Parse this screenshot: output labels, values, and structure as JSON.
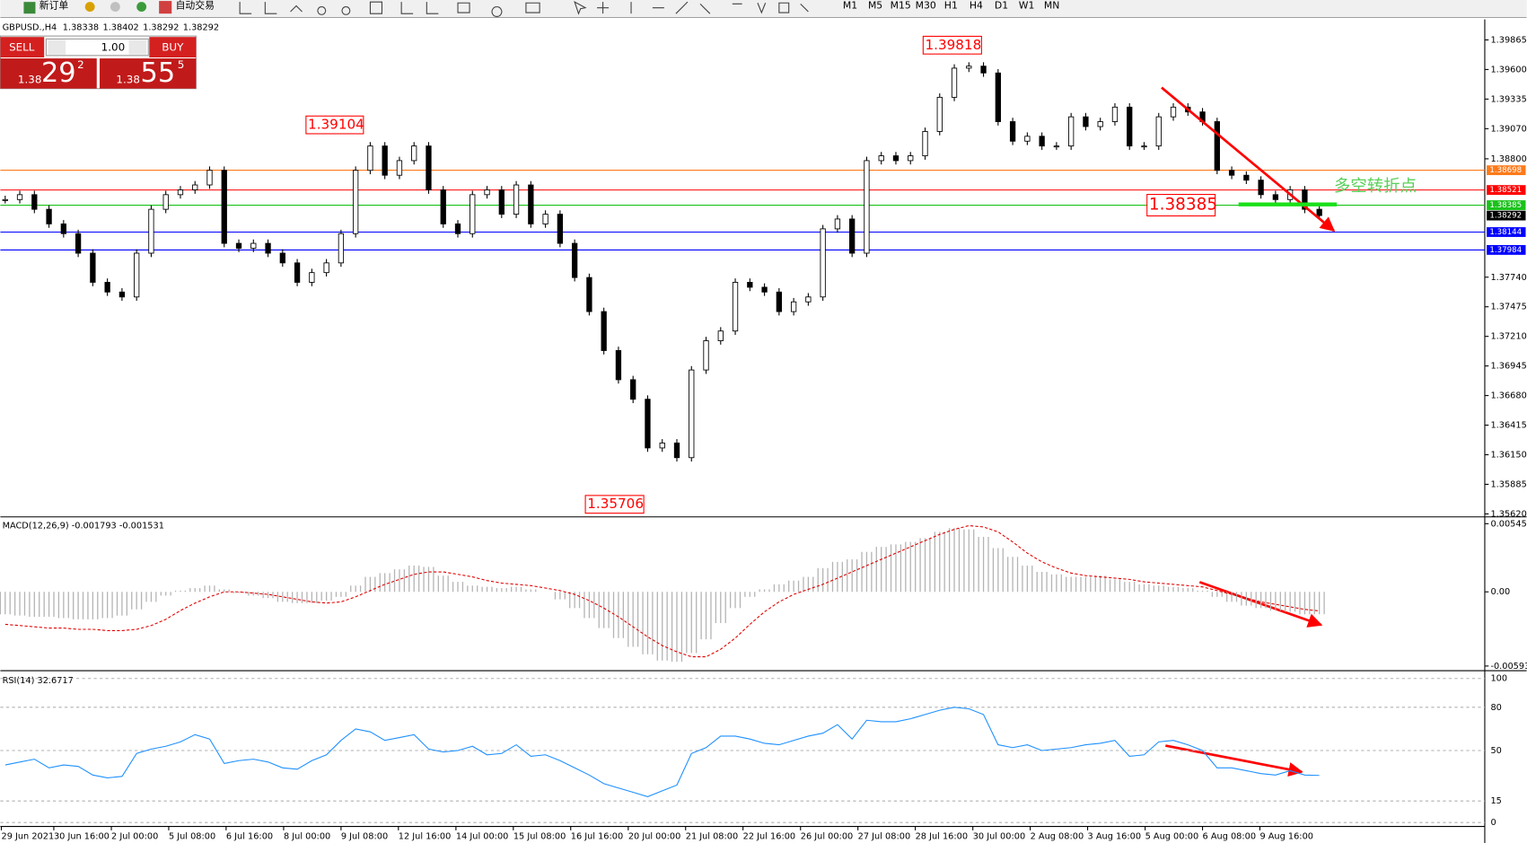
{
  "toolbar": {
    "new_order": "新订单",
    "auto_trading": "自动交易",
    "timeframes": [
      "M1",
      "M5",
      "M15",
      "M30",
      "H1",
      "H4",
      "D1",
      "W1",
      "MN"
    ]
  },
  "order_panel": {
    "sell": "SELL",
    "buy": "BUY",
    "lots": "1.00",
    "bid": {
      "big": "1.38",
      "pips": "29",
      "point": "2"
    },
    "ask": {
      "big": "1.38",
      "pips": "55",
      "point": "5"
    }
  },
  "header": {
    "symbol": "GBPUSD.,H4",
    "ohlc": [
      1.38338,
      1.38402,
      1.38292,
      1.38292
    ]
  },
  "price_chart": {
    "type": "candlestick",
    "closes": [
      1.38435,
      1.38479,
      1.38348,
      1.38217,
      1.3813,
      1.37955,
      1.37694,
      1.37607,
      1.37563,
      1.37955,
      1.38348,
      1.38479,
      1.38522,
      1.38566,
      1.38697,
      1.38043,
      1.37999,
      1.38043,
      1.37955,
      1.37868,
      1.37694,
      1.37781,
      1.37868,
      1.3813,
      1.38697,
      1.38915,
      1.38653,
      1.38784,
      1.38915,
      1.38522,
      1.38217,
      1.3813,
      1.38479,
      1.38522,
      1.38304,
      1.38566,
      1.38217,
      1.38304,
      1.38043,
      1.37737,
      1.37432,
      1.37083,
      1.36822,
      1.36647,
      1.36211,
      1.36255,
      1.36124,
      1.36909,
      1.37171,
      1.37258,
      1.37694,
      1.3765,
      1.37607,
      1.37432,
      1.37519,
      1.37563,
      1.38173,
      1.38261,
      1.37955,
      1.38784,
      1.38827,
      1.38784,
      1.38827,
      1.39045,
      1.39351,
      1.39612,
      1.3963,
      1.39569,
      1.39133,
      1.38958,
      1.39002,
      1.38915,
      1.38915,
      1.39176,
      1.39089,
      1.39133,
      1.39263,
      1.38915,
      1.38915,
      1.39176,
      1.39263,
      1.3922,
      1.39133,
      1.38697,
      1.38653,
      1.38609,
      1.38479,
      1.38435,
      1.38522,
      1.38348,
      1.38292
    ],
    "up_color": "#ffffff",
    "down_color": "#000000",
    "xlim": [
      -0.33,
      101.33
    ],
    "xticks": [
      {
        "value": -0.33,
        "label": "29 Jun 2021"
      },
      {
        "value": 3.33,
        "label": "30 Jun 16:00"
      },
      {
        "value": 7.27,
        "label": "2 Jul 00:00"
      },
      {
        "value": 11.2,
        "label": "5 Jul 08:00"
      },
      {
        "value": 15.13,
        "label": "6 Jul 16:00"
      },
      {
        "value": 19.07,
        "label": "8 Jul 00:00"
      },
      {
        "value": 23,
        "label": "9 Jul 08:00"
      },
      {
        "value": 26.93,
        "label": "12 Jul 16:00"
      },
      {
        "value": 30.87,
        "label": "14 Jul 00:00"
      },
      {
        "value": 34.8,
        "label": "15 Jul 08:00"
      },
      {
        "value": 38.73,
        "label": "16 Jul 16:00"
      },
      {
        "value": 42.67,
        "label": "20 Jul 00:00"
      },
      {
        "value": 46.6,
        "label": "21 Jul 08:00"
      },
      {
        "value": 50.53,
        "label": "22 Jul 16:00"
      },
      {
        "value": 54.47,
        "label": "26 Jul 00:00"
      },
      {
        "value": 58.4,
        "label": "27 Jul 08:00"
      },
      {
        "value": 62.33,
        "label": "28 Jul 16:00"
      },
      {
        "value": 66.27,
        "label": "30 Jul 00:00"
      },
      {
        "value": 70.2,
        "label": "2 Aug 08:00"
      },
      {
        "value": 74.13,
        "label": "3 Aug 16:00"
      },
      {
        "value": 78.07,
        "label": "5 Aug 00:00"
      },
      {
        "value": 82,
        "label": "6 Aug 08:00"
      },
      {
        "value": 85.93,
        "label": "9 Aug 16:00"
      }
    ],
    "ylim": [
      1.35602,
      1.40048
    ],
    "yticks": [
      1.39865,
      {
        "value": 1.396,
        "label": "1.39600"
      },
      1.39335,
      {
        "value": 1.3907,
        "label": "1.39070"
      },
      {
        "value": 1.388,
        "label": "1.38800"
      },
      {
        "value": 1.3774,
        "label": "1.37740"
      },
      1.37475,
      {
        "value": 1.3721,
        "label": "1.37210"
      },
      1.36945,
      {
        "value": 1.3668,
        "label": "1.36680"
      },
      1.36415,
      {
        "value": 1.3615,
        "label": "1.36150"
      },
      1.35885,
      {
        "value": 1.3562,
        "label": "1.35620"
      }
    ],
    "levels": [
      {
        "value": 1.38698,
        "color": "#ff7a1a",
        "line": true
      },
      {
        "value": 1.38521,
        "color": "#ff0000",
        "line": true
      },
      {
        "value": 1.38385,
        "color": "#19c219",
        "line": true
      },
      {
        "value": 1.38292,
        "color": "#000000",
        "line": false
      },
      {
        "value": 1.38144,
        "color": "#0000ff",
        "line": true
      },
      {
        "value": 1.37984,
        "color": "#0000ff",
        "line": true
      }
    ],
    "annotations": [
      1.39818,
      1.39104,
      1.35706,
      1.38385
    ],
    "note": "多空转折点"
  },
  "macd": {
    "title": "MACD(12,26,9) -0.001793 -0.001531",
    "histogram": [
      -0.0018,
      -0.0019,
      -0.002,
      -0.002,
      -0.0021,
      -0.0022,
      -0.0022,
      -0.0021,
      -0.0019,
      -0.0014,
      -0.0008,
      -0.0003,
      0.0001,
      0.0003,
      0.0005,
      0.0002,
      -0.0001,
      -0.0003,
      -0.0005,
      -0.0008,
      -0.0009,
      -0.0009,
      -0.0007,
      -0.0004,
      0.0005,
      0.0012,
      0.0015,
      0.0018,
      0.0021,
      0.002,
      0.0013,
      0.0008,
      0.0005,
      0.0004,
      0.0003,
      0.0004,
      0.0002,
      0,
      -0.0006,
      -0.0013,
      -0.0021,
      -0.0029,
      -0.0037,
      -0.0044,
      -0.005,
      -0.0055,
      -0.0056,
      -0.0049,
      -0.0038,
      -0.0025,
      -0.0013,
      -0.0004,
      0.0002,
      0.0006,
      0.0009,
      0.0012,
      0.0019,
      0.0024,
      0.0026,
      0.0032,
      0.0036,
      0.0038,
      0.004,
      0.0043,
      0.0048,
      0.0051,
      0.005,
      0.0044,
      0.0035,
      0.0028,
      0.0021,
      0.0016,
      0.0014,
      0.0012,
      0.0012,
      0.0013,
      0.001,
      0.0008,
      0.0006,
      0.0005,
      0.0004,
      0.0003,
      0.0001,
      -0.0004,
      -0.0008,
      -0.0011,
      -0.0013,
      -0.0015,
      -0.0016,
      -0.0018,
      -0.001793
    ],
    "signal": [
      -0.0026,
      -0.0027,
      -0.0028,
      -0.0029,
      -0.0029,
      -0.003,
      -0.003,
      -0.0031,
      -0.0031,
      -0.003,
      -0.0027,
      -0.0022,
      -0.0015,
      -0.0009,
      -0.0004,
      0,
      0,
      -0.0001,
      -0.0002,
      -0.0004,
      -0.0006,
      -0.0008,
      -0.0009,
      -0.0008,
      -0.0004,
      0.0001,
      0.0006,
      0.001,
      0.0014,
      0.0016,
      0.0016,
      0.0014,
      0.0012,
      0.0009,
      0.0007,
      0.0006,
      0.0005,
      0.0003,
      0.0001,
      -0.0002,
      -0.0007,
      -0.0013,
      -0.002,
      -0.0028,
      -0.0036,
      -0.0043,
      -0.0048,
      -0.0052,
      -0.0052,
      -0.0046,
      -0.0037,
      -0.0026,
      -0.0016,
      -0.0008,
      -0.0002,
      0.0002,
      0.0006,
      0.0011,
      0.0016,
      0.0021,
      0.0026,
      0.0031,
      0.0036,
      0.0041,
      0.0046,
      0.005,
      0.0053,
      0.0052,
      0.0048,
      0.004,
      0.0031,
      0.0024,
      0.0019,
      0.0015,
      0.0013,
      0.0012,
      0.0011,
      0.001,
      0.0008,
      0.0007,
      0.0006,
      0.0005,
      0.0004,
      0.0001,
      -0.0002,
      -0.0005,
      -0.0008,
      -0.001,
      -0.0012,
      -0.0014,
      -0.001531
    ],
    "histogram_color": "#b4b4b4",
    "signal_color": "#e00000",
    "ylim": [
      -0.006234,
      0.005844
    ],
    "yticks": [
      0.005455,
      {
        "value": 0,
        "label": "0.00"
      },
      -0.005938
    ]
  },
  "rsi": {
    "title": "RSI(14) 32.6717",
    "values": [
      40,
      42,
      44,
      38,
      40,
      39,
      33,
      31,
      32,
      48,
      51,
      53,
      56,
      61,
      58,
      41,
      43,
      44,
      42,
      38,
      37,
      43,
      47,
      57,
      65,
      63,
      57,
      59,
      61,
      51,
      49,
      50,
      53,
      47,
      48,
      54,
      46,
      47,
      43,
      38,
      33,
      27,
      24,
      21,
      18,
      22,
      26,
      48,
      52,
      60,
      60,
      58,
      55,
      54,
      57,
      60,
      62,
      68,
      58,
      71,
      70,
      70,
      72,
      75,
      78,
      80,
      79,
      75,
      54,
      52,
      54,
      50,
      51,
      52,
      54,
      55,
      57,
      46,
      47,
      56,
      57,
      54,
      50,
      38,
      38,
      36,
      34,
      33,
      36,
      33,
      32.6717
    ],
    "color": "#1e90ff",
    "ylim": [
      -2.03,
      104.05
    ],
    "yticks": [
      100,
      80,
      50,
      15,
      0
    ]
  }
}
